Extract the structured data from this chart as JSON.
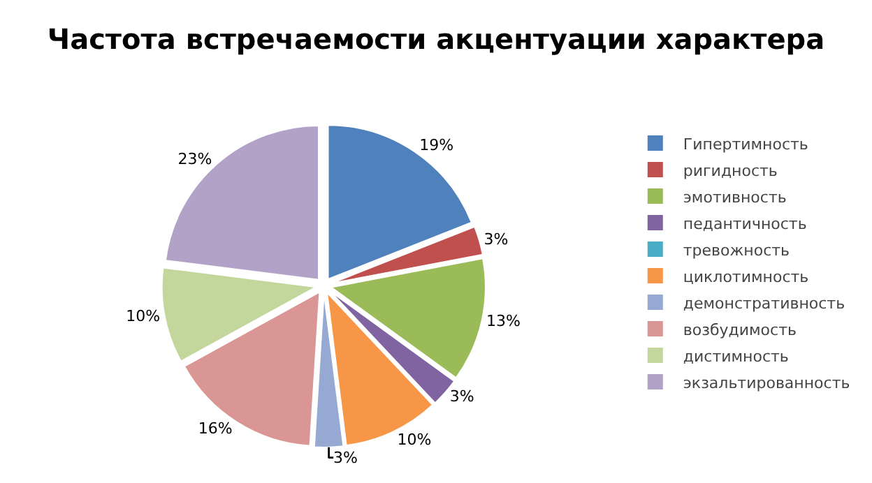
{
  "chart_data": {
    "type": "pie",
    "title": "Частота встречаемости акцентуации характера",
    "categories": [
      "Гипертимность",
      "ригидность",
      "эмотивность",
      "педантичность",
      "тревожность",
      "циклотимность",
      "демонстративность",
      "возбудимость",
      "дистимность",
      "экзальтированность"
    ],
    "values": [
      19,
      3,
      13,
      3,
      0,
      10,
      3,
      16,
      10,
      23
    ],
    "value_labels": [
      "19%",
      "3%",
      "13%",
      "3%",
      null,
      "10%",
      "3%",
      "16%",
      "10%",
      "23%"
    ],
    "colors": [
      "#4f81bd",
      "#c0504d",
      "#9bbb59",
      "#8064a2",
      "#4bacc6",
      "#f79646",
      "#95a9d2",
      "#d99694",
      "#c3d69b",
      "#b3a2c7"
    ],
    "legend": "right"
  }
}
